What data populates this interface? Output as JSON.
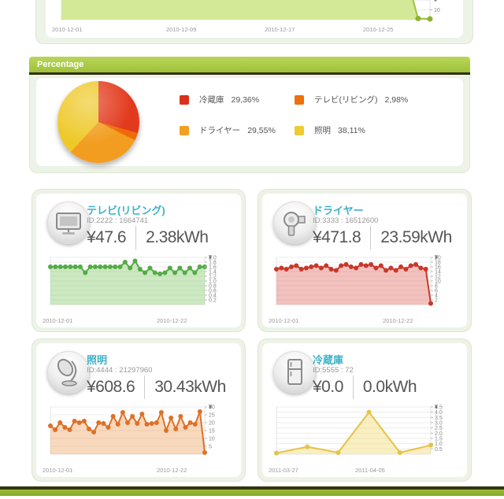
{
  "top_chart": {
    "type": "area",
    "unit": "¥",
    "color": "#9dc13f",
    "dot_color": "#8cb332",
    "fill": "#d3e998",
    "ymax": 20,
    "yticks": [
      "10"
    ],
    "values": [
      45,
      45,
      45,
      45,
      45,
      45,
      45,
      45,
      45,
      45,
      45,
      45,
      45,
      45,
      45,
      45,
      45,
      45,
      45,
      45,
      45,
      45,
      45,
      45,
      45,
      45,
      45,
      45,
      45,
      45,
      1.2,
      0.8
    ],
    "x_labels": [
      "2010-12-01",
      "2010-12-09",
      "2010-12-17",
      "2010-12-25"
    ]
  },
  "percentage": {
    "header": "Percentage",
    "chart_data": {
      "type": "pie",
      "slices": [
        {
          "label": "冷蔵庫",
          "pct": 29.36,
          "color": "#e23a1c"
        },
        {
          "label": "テレビ(リビング)",
          "pct": 2.98,
          "color": "#ee6a06"
        },
        {
          "label": "ドライヤー",
          "pct": 29.55,
          "color": "#f29d1f"
        },
        {
          "label": "照明",
          "pct": 38.11,
          "color": "#eec929"
        }
      ]
    },
    "legend": [
      {
        "label": "冷蔵庫",
        "value": "29,36%",
        "color": "#dd2f1b"
      },
      {
        "label": "テレビ(リビング)",
        "value": "2,98%",
        "color": "#ee7008"
      },
      {
        "label": "ドライヤー",
        "value": "29,55%",
        "color": "#f2a01d"
      },
      {
        "label": "照明",
        "value": "38,11%",
        "color": "#eecb30"
      }
    ]
  },
  "cards": [
    {
      "title": "テレビ(リビング)",
      "id_line": "ID:2222 : 1664741",
      "cost": "¥47.6",
      "energy": "2.38kWh",
      "icon": "tv",
      "chart": {
        "type": "area",
        "unit": "¥",
        "color": "#55ab47",
        "fill": "rgba(130,200,100,0.4)",
        "ymax": 2.0,
        "yticks": [
          "2.0",
          "1.8",
          "1.6",
          "1.4",
          "1.2",
          "1.0",
          "0.8",
          "0.6",
          "0.4",
          "0.2"
        ],
        "values": [
          1.6,
          1.6,
          1.6,
          1.6,
          1.6,
          1.6,
          1.6,
          1.35,
          1.6,
          1.6,
          1.6,
          1.6,
          1.6,
          1.6,
          1.6,
          1.8,
          1.55,
          1.85,
          1.5,
          1.35,
          1.55,
          1.35,
          1.3,
          1.35,
          1.55,
          1.35,
          1.55,
          1.35,
          1.55,
          1.35,
          1.6,
          1.6
        ],
        "x_labels": [
          "2010-12-01",
          "2010-12-22"
        ]
      }
    },
    {
      "title": "ドライヤー",
      "id_line": "ID:3333 : 16512600",
      "cost": "¥471.8",
      "energy": "23.59kWh",
      "icon": "dryer",
      "chart": {
        "type": "area",
        "unit": "¥",
        "color": "#c9372b",
        "fill": "rgba(225,95,85,0.38)",
        "ymax": 20,
        "yticks": [
          "20",
          "18",
          "16",
          "14",
          "12",
          "10",
          "8",
          "6",
          "4",
          "2"
        ],
        "values": [
          15,
          15.5,
          15,
          16,
          16.5,
          15,
          15.5,
          16,
          16.5,
          15.5,
          16.5,
          15,
          14.5,
          16.5,
          17,
          16,
          15.5,
          17,
          16.5,
          17,
          15.5,
          16.5,
          14.5,
          15.5,
          14.5,
          16,
          15,
          16.5,
          17,
          15.5,
          15,
          0.5
        ],
        "x_labels": [
          "2010-12-01",
          "2010-12-22"
        ]
      }
    },
    {
      "title": "照明",
      "id_line": "ID:4444 : 21297960",
      "cost": "¥608.6",
      "energy": "30.43kWh",
      "icon": "lamp",
      "chart": {
        "type": "area",
        "unit": "¥",
        "color": "#dd7128",
        "fill": "rgba(240,160,90,0.4)",
        "ymax": 30,
        "yticks": [
          "30",
          "25",
          "20",
          "15",
          "10",
          "5"
        ],
        "values": [
          18,
          15.5,
          20,
          17,
          15.5,
          21,
          20,
          21,
          16,
          14,
          20,
          19.5,
          17,
          24,
          19,
          26.5,
          20,
          24,
          19.5,
          25.5,
          19,
          19.5,
          20,
          26.5,
          15,
          23,
          16,
          24,
          17,
          20,
          19,
          27,
          1
        ],
        "x_labels": [
          "2010-12-01",
          "2010-12-22"
        ]
      }
    },
    {
      "title": "冷蔵庫",
      "id_line": "ID:5555 : 72",
      "cost": "¥0.0",
      "energy": "0.0kWh",
      "icon": "fridge",
      "chart": {
        "type": "area",
        "unit": "¥",
        "color": "#e5c345",
        "fill": "rgba(245,220,120,0.45)",
        "ymax": 4.5,
        "yticks": [
          "4.5",
          "4.0",
          "3.5",
          "3.0",
          "2.5",
          "2.0",
          "1.5",
          "1.0",
          "0.5"
        ],
        "values": [
          0.1,
          0.7,
          0.15,
          4.0,
          0.15,
          0.85
        ],
        "x_labels": [
          "2011-03-27",
          "2011-04-05"
        ]
      }
    }
  ]
}
